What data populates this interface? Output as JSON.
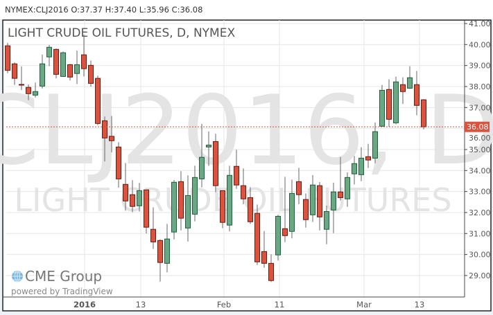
{
  "header": {
    "quote_line": "NYMEX:CLJ2016 O:37.37 H:37.40 L:35.96 C:36.08"
  },
  "watermark": {
    "symbol": "CLJ2016, D",
    "description": "LIGHT CRUDE OIL FUTURES"
  },
  "logo": {
    "brand": "CME Group",
    "powered_by": "powered by TradingView"
  },
  "colors": {
    "up": "#6aa785",
    "up_border": "#1f5e3a",
    "down": "#d9533f",
    "down_border": "#6b1a12",
    "wick": "#666666",
    "last_price": "#d9533f"
  },
  "chart_data": {
    "type": "candlestick",
    "title": "LIGHT CRUDE OIL FUTURES, D, NYMEX",
    "ylim": [
      28,
      41.2
    ],
    "grid": true,
    "y_ticks": [
      "29.00",
      "30.00",
      "31.00",
      "32.00",
      "33.00",
      "34.00",
      "35.00",
      "36.00",
      "37.00",
      "38.00",
      "39.00",
      "40.00",
      "41.00"
    ],
    "x_ticks": [
      {
        "label": "2016",
        "bar": 11.1,
        "bold": true
      },
      {
        "label": "13",
        "bar": 19.2
      },
      {
        "label": "Feb",
        "bar": 31.2
      },
      {
        "label": "11",
        "bar": 39.2
      },
      {
        "label": "Mar",
        "bar": 51.4
      },
      {
        "label": "13",
        "bar": 59.4
      }
    ],
    "last_price": {
      "value": 36.08,
      "label": "36.08"
    },
    "ohlc": [
      [
        39.94,
        40.08,
        38.64,
        38.77
      ],
      [
        39.08,
        39.15,
        38.08,
        38.39
      ],
      [
        38.1,
        38.96,
        37.83,
        38.08
      ],
      [
        37.96,
        38.1,
        37.35,
        37.66
      ],
      [
        37.59,
        38.19,
        37.48,
        37.76
      ],
      [
        38.02,
        39.52,
        37.91,
        39.08
      ],
      [
        39.41,
        39.98,
        38.97,
        39.87
      ],
      [
        39.77,
        39.81,
        38.39,
        38.58
      ],
      [
        38.48,
        39.67,
        38.48,
        39.61
      ],
      [
        39.04,
        39.08,
        38.29,
        38.45
      ],
      [
        38.62,
        39.71,
        38.12,
        39.04
      ],
      [
        39.51,
        40.47,
        38.48,
        38.85
      ],
      [
        39.01,
        39.24,
        37.99,
        38.15
      ],
      [
        38.39,
        38.52,
        36.16,
        36.24
      ],
      [
        36.37,
        36.57,
        34.43,
        35.55
      ],
      [
        35.63,
        36.6,
        34.86,
        35.42
      ],
      [
        35.12,
        35.35,
        33.18,
        33.6
      ],
      [
        33.34,
        34.36,
        32.09,
        32.55
      ],
      [
        32.85,
        33.54,
        32.02,
        32.29
      ],
      [
        32.32,
        33.41,
        32.05,
        33.04
      ],
      [
        33.08,
        33.08,
        31.0,
        31.3
      ],
      [
        31.2,
        32.25,
        30.27,
        30.6
      ],
      [
        30.67,
        30.72,
        28.71,
        29.62
      ],
      [
        29.58,
        31.46,
        29.15,
        30.74
      ],
      [
        31.07,
        33.55,
        30.72,
        33.44
      ],
      [
        33.47,
        33.97,
        31.15,
        31.73
      ],
      [
        31.26,
        33.77,
        30.62,
        32.81
      ],
      [
        31.92,
        34.23,
        31.58,
        33.67
      ],
      [
        33.6,
        36.22,
        33.2,
        34.63
      ],
      [
        35.12,
        35.86,
        34.22,
        35.21
      ],
      [
        35.38,
        35.75,
        32.97,
        33.28
      ],
      [
        33.04,
        33.04,
        31.25,
        31.53
      ],
      [
        31.4,
        34.23,
        31.1,
        33.77
      ],
      [
        34.2,
        34.99,
        33.13,
        33.31
      ],
      [
        33.28,
        34.1,
        32.4,
        32.65
      ],
      [
        32.71,
        33.21,
        31.46,
        31.56
      ],
      [
        31.96,
        32.38,
        29.5,
        29.65
      ],
      [
        30.14,
        31.12,
        29.37,
        29.58
      ],
      [
        29.58,
        30.01,
        28.69,
        28.76
      ],
      [
        29.98,
        31.89,
        29.71,
        31.82
      ],
      [
        31.23,
        33.7,
        30.59,
        30.9
      ],
      [
        31.1,
        33.57,
        30.77,
        32.91
      ],
      [
        33.47,
        34.13,
        32.4,
        32.85
      ],
      [
        32.62,
        32.91,
        31.28,
        31.66
      ],
      [
        31.89,
        33.78,
        31.55,
        33.31
      ],
      [
        33.28,
        33.45,
        31.15,
        31.79
      ],
      [
        31.2,
        32.33,
        30.49,
        32.05
      ],
      [
        32.12,
        33.42,
        31.02,
        32.98
      ],
      [
        32.98,
        34.65,
        32.58,
        32.71
      ],
      [
        32.65,
        33.91,
        32.27,
        33.67
      ],
      [
        33.84,
        34.69,
        33.34,
        34.33
      ],
      [
        33.8,
        35.11,
        33.49,
        34.59
      ],
      [
        34.66,
        35.27,
        34.12,
        34.5
      ],
      [
        34.59,
        36.29,
        34.35,
        35.85
      ],
      [
        36.11,
        38.08,
        36.08,
        37.82
      ],
      [
        37.86,
        38.34,
        36.08,
        36.44
      ],
      [
        36.27,
        38.47,
        36.2,
        38.22
      ],
      [
        38.09,
        38.44,
        37.17,
        37.76
      ],
      [
        37.92,
        38.97,
        37.89,
        38.42
      ],
      [
        38.09,
        38.74,
        36.63,
        37.1
      ],
      [
        37.37,
        37.4,
        35.96,
        36.08
      ]
    ]
  }
}
